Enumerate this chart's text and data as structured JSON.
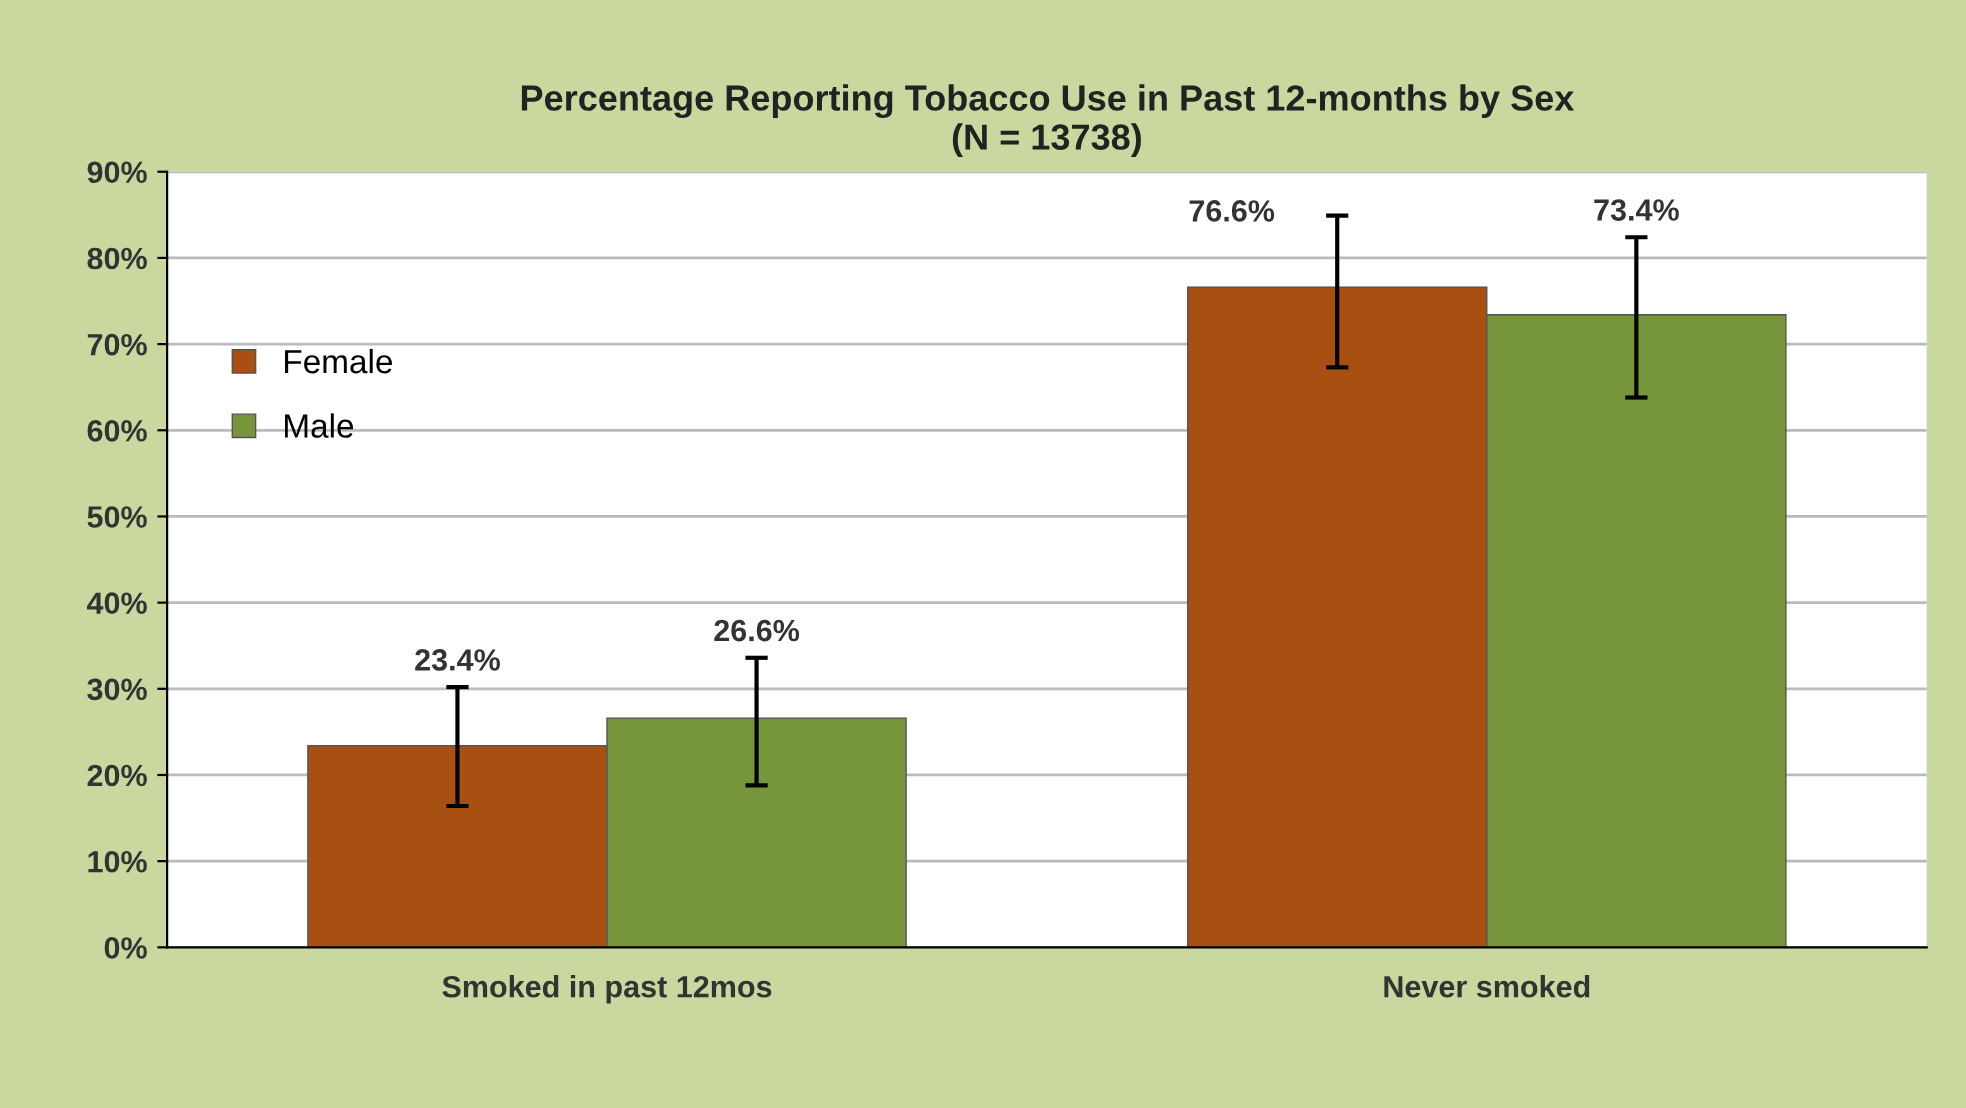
{
  "chart_data": {
    "type": "bar",
    "title": "Percentage Reporting Tobacco Use in Past 12-months by Sex\n(N = 13738)",
    "categories": [
      "Smoked in past 12mos",
      "Never smoked"
    ],
    "series": [
      {
        "name": "Female",
        "color": "#a84f12",
        "values": [
          23.4,
          76.6
        ],
        "value_labels": [
          "23.4%",
          "76.6%"
        ],
        "errors": [
          [
            16.4,
            30.2
          ],
          [
            67.3,
            84.9
          ]
        ]
      },
      {
        "name": "Male",
        "color": "#77953a",
        "values": [
          26.6,
          73.4
        ],
        "value_labels": [
          "26.6%",
          "73.4%"
        ],
        "errors": [
          [
            18.8,
            33.6
          ],
          [
            63.8,
            82.4
          ]
        ]
      }
    ],
    "ylim": [
      0,
      90
    ],
    "yticks": [
      {
        "value": 0,
        "label": "0%"
      },
      {
        "value": 10,
        "label": "10%"
      },
      {
        "value": 20,
        "label": "20%"
      },
      {
        "value": 30,
        "label": "30%"
      },
      {
        "value": 40,
        "label": "40%"
      },
      {
        "value": 50,
        "label": "50%"
      },
      {
        "value": 60,
        "label": "60%"
      },
      {
        "value": 70,
        "label": "70%"
      },
      {
        "value": 80,
        "label": "80%"
      },
      {
        "value": 90,
        "label": "90%"
      }
    ],
    "grid": "y",
    "legend": "left"
  }
}
